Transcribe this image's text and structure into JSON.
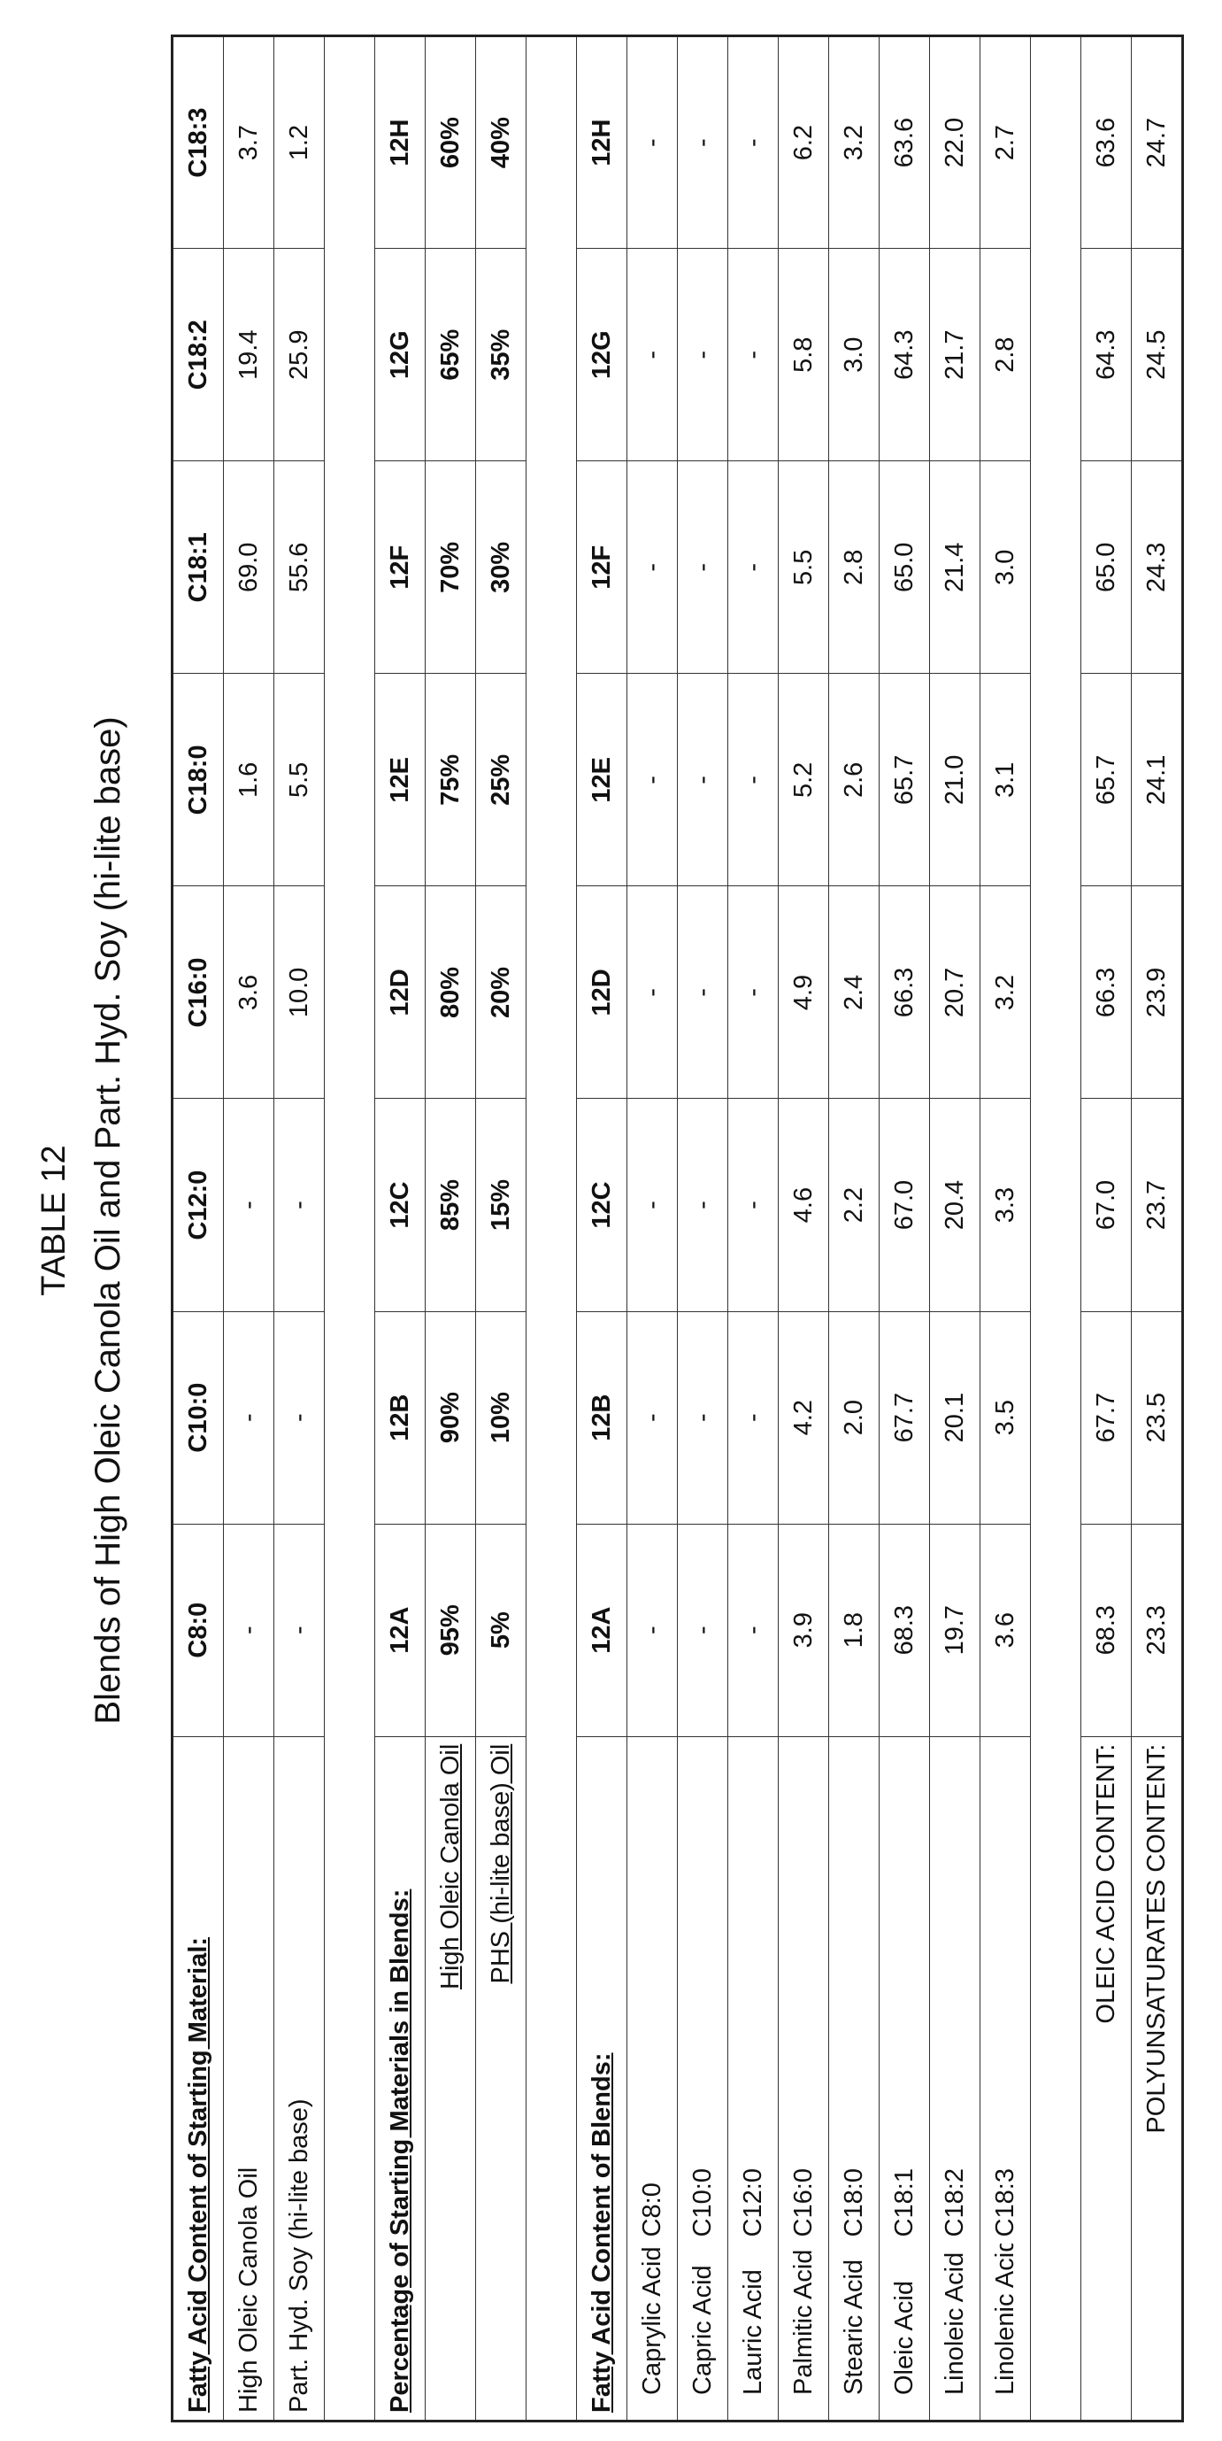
{
  "table": {
    "title": "TABLE 12",
    "subtitle": "Blends of High Oleic Canola Oil and Part. Hyd. Soy (hi-lite base)",
    "sections": [
      {
        "header": {
          "label": "Fatty Acid Content of Starting Material:",
          "cells": [
            "C8:0",
            "C10:0",
            "C12:0",
            "C16:0",
            "C18:0",
            "C18:1",
            "C18:2",
            "C18:3"
          ]
        },
        "rows": [
          {
            "label": "High Oleic Canola Oil",
            "cells": [
              "-",
              "-",
              "-",
              "3.6",
              "1.6",
              "69.0",
              "19.4",
              "3.7"
            ]
          },
          {
            "label": "Part. Hyd. Soy (hi-lite base)",
            "cells": [
              "-",
              "-",
              "-",
              "10.0",
              "5.5",
              "55.6",
              "25.9",
              "1.2"
            ]
          }
        ]
      },
      {
        "header": {
          "label": "Percentage of Starting Materials in Blends:",
          "cells": [
            "12A",
            "12B",
            "12C",
            "12D",
            "12E",
            "12F",
            "12G",
            "12H"
          ]
        },
        "rows": [
          {
            "label": "High Oleic Canola Oil",
            "cells": [
              "95%",
              "90%",
              "85%",
              "80%",
              "75%",
              "70%",
              "65%",
              "60%"
            ]
          },
          {
            "label": "PHS (hi-lite base) Oil",
            "cells": [
              "5%",
              "10%",
              "15%",
              "20%",
              "25%",
              "30%",
              "35%",
              "40%"
            ]
          }
        ]
      },
      {
        "header": {
          "label": "Fatty Acid Content of Blends:",
          "cells": [
            "12A",
            "12B",
            "12C",
            "12D",
            "12E",
            "12F",
            "12G",
            "12H"
          ]
        },
        "rows": [
          {
            "label": "Caprylic Acid",
            "code": "C8:0",
            "cells": [
              "-",
              "-",
              "-",
              "-",
              "-",
              "-",
              "-",
              "-"
            ]
          },
          {
            "label": "Capric Acid",
            "code": "C10:0",
            "cells": [
              "-",
              "-",
              "-",
              "-",
              "-",
              "-",
              "-",
              "-"
            ]
          },
          {
            "label": "Lauric Acid",
            "code": "C12:0",
            "cells": [
              "-",
              "-",
              "-",
              "-",
              "-",
              "-",
              "-",
              "-"
            ]
          },
          {
            "label": "Palmitic Acid",
            "code": "C16:0",
            "cells": [
              "3.9",
              "4.2",
              "4.6",
              "4.9",
              "5.2",
              "5.5",
              "5.8",
              "6.2"
            ]
          },
          {
            "label": "Stearic Acid",
            "code": "C18:0",
            "cells": [
              "1.8",
              "2.0",
              "2.2",
              "2.4",
              "2.6",
              "2.8",
              "3.0",
              "3.2"
            ]
          },
          {
            "label": "Oleic Acid",
            "code": "C18:1",
            "cells": [
              "68.3",
              "67.7",
              "67.0",
              "66.3",
              "65.7",
              "65.0",
              "64.3",
              "63.6"
            ]
          },
          {
            "label": "Linoleic Acid",
            "code": "C18:2",
            "cells": [
              "19.7",
              "20.1",
              "20.4",
              "20.7",
              "21.0",
              "21.4",
              "21.7",
              "22.0"
            ]
          },
          {
            "label": "Linolenic Acid",
            "code": "C18:3",
            "cells": [
              "3.6",
              "3.5",
              "3.3",
              "3.2",
              "3.1",
              "3.0",
              "2.8",
              "2.7"
            ]
          }
        ]
      },
      {
        "rows": [
          {
            "label": "OLEIC ACID CONTENT:",
            "cells": [
              "68.3",
              "67.7",
              "67.0",
              "66.3",
              "65.7",
              "65.0",
              "64.3",
              "63.6"
            ]
          },
          {
            "label": "POLYUNSATURATES CONTENT:",
            "cells": [
              "23.3",
              "23.5",
              "23.7",
              "23.9",
              "24.1",
              "24.3",
              "24.5",
              "24.7"
            ]
          }
        ]
      }
    ]
  }
}
